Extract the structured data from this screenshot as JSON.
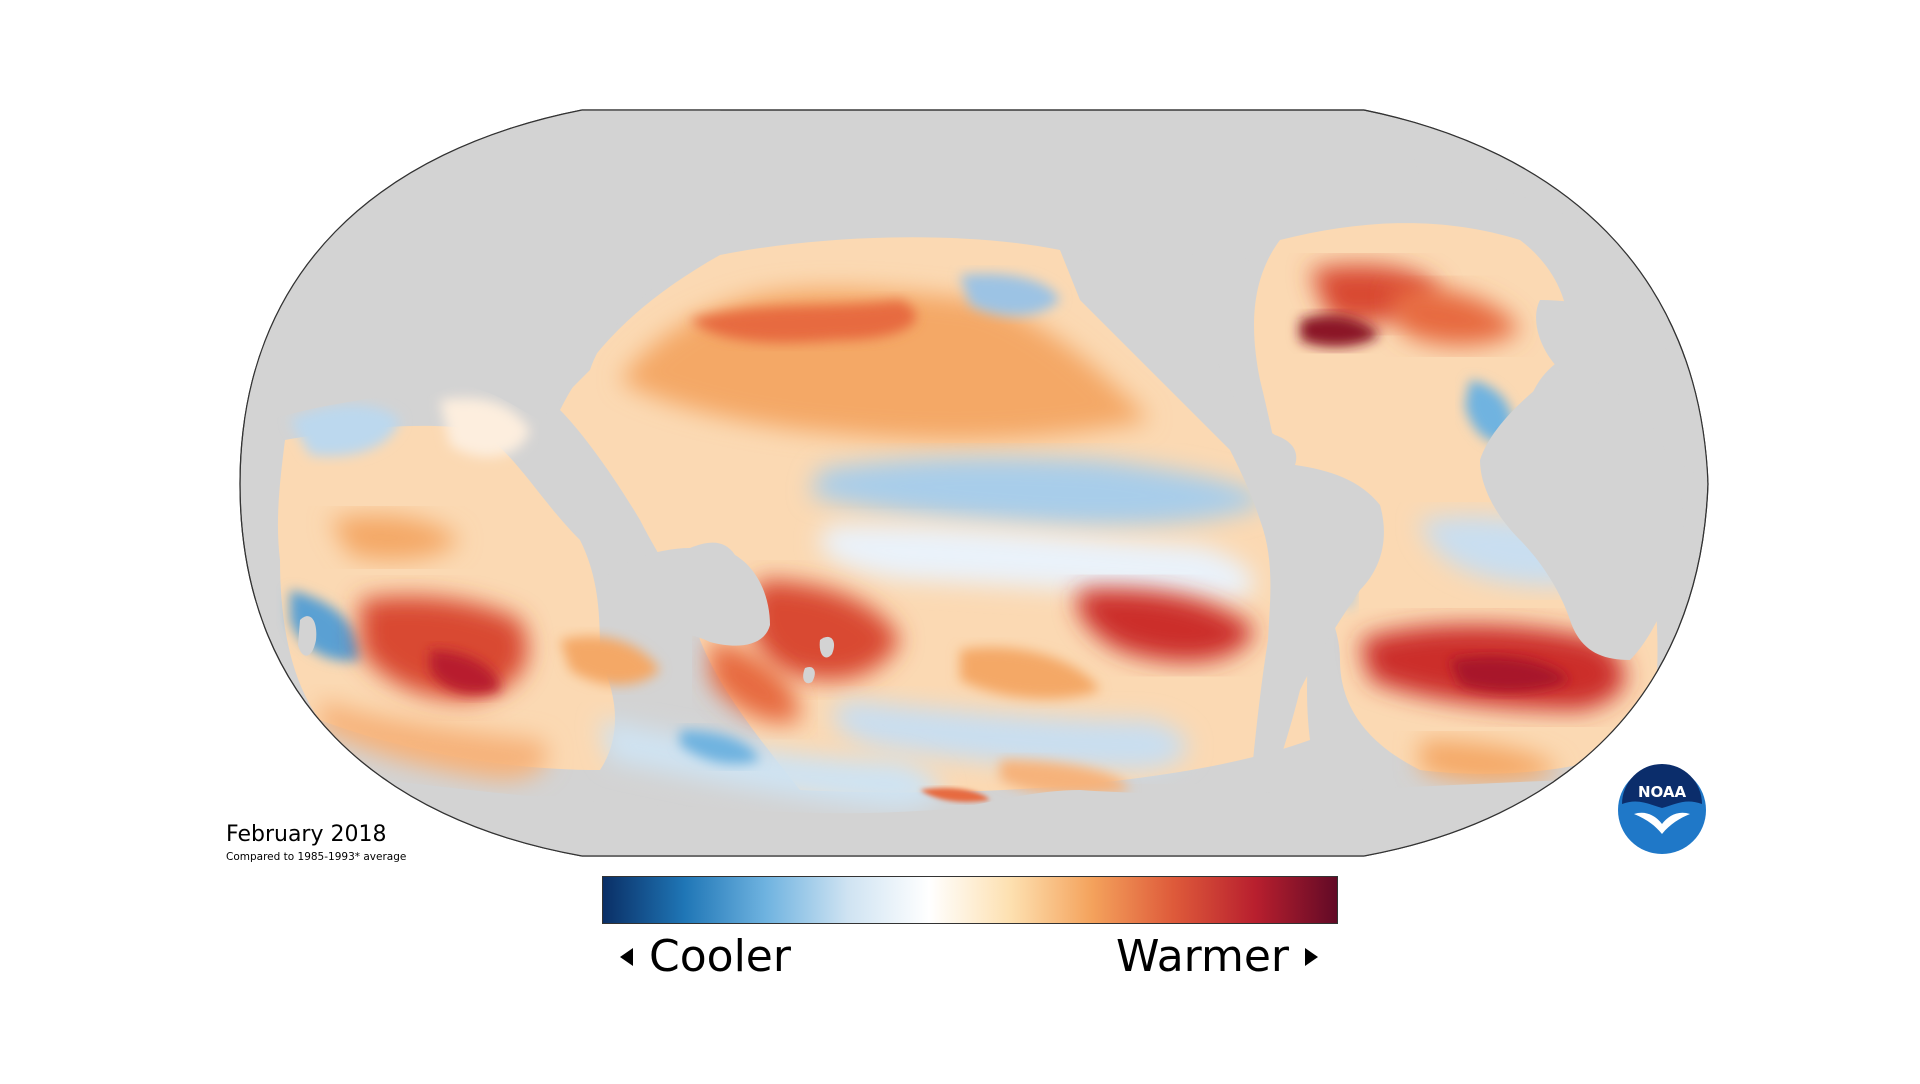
{
  "caption": {
    "date": "February 2018",
    "note": "Compared to 1985-1993* average"
  },
  "legend": {
    "cooler_label": "Cooler",
    "warmer_label": "Warmer",
    "colors": [
      "#0a2f66",
      "#1f76b6",
      "#6fb3e0",
      "#cfe3f2",
      "#ffffff",
      "#fde0b0",
      "#f4a25c",
      "#de5a3a",
      "#b81f2e",
      "#620a26"
    ]
  },
  "map": {
    "projection": "Robinson",
    "land_color": "#d3d3d3",
    "outline_color": "#333333"
  },
  "logo": {
    "text": "NOAA",
    "blue": "#1f78c8",
    "navy": "#0b2d6b"
  }
}
